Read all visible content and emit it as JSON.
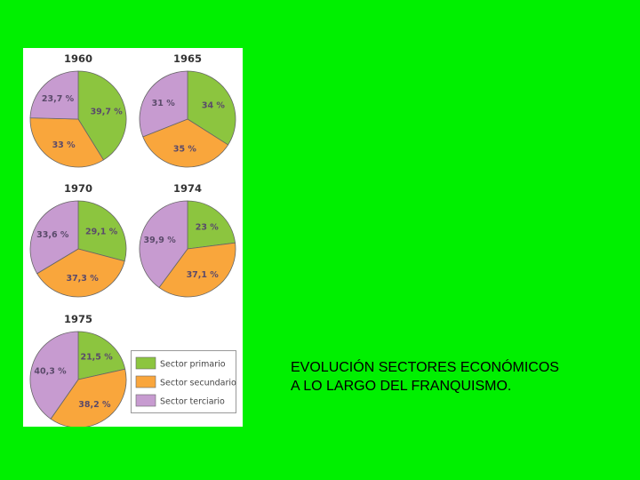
{
  "slide": {
    "background": "#00f000",
    "caption_line1": "EVOLUCIÓN SECTORES ECONÓMICOS",
    "caption_line2": "A LO LARGO DEL FRANQUISMO."
  },
  "colors": {
    "primario": "#8cc53f",
    "secundario": "#f9a63c",
    "terciario": "#c79bd0",
    "stroke": "#666666",
    "label": "#5a4a6a",
    "title": "#333333"
  },
  "chart_data": [
    {
      "type": "pie",
      "title": "1960",
      "series": [
        {
          "name": "Sector primario",
          "value": 39.7,
          "label": "39,7 %"
        },
        {
          "name": "Sector secundario",
          "value": 33,
          "label": "33 %"
        },
        {
          "name": "Sector terciario",
          "value": 23.7,
          "label": "23,7 %"
        }
      ]
    },
    {
      "type": "pie",
      "title": "1965",
      "series": [
        {
          "name": "Sector primario",
          "value": 34,
          "label": "34 %"
        },
        {
          "name": "Sector secundario",
          "value": 35,
          "label": "35 %"
        },
        {
          "name": "Sector terciario",
          "value": 31,
          "label": "31 %"
        }
      ]
    },
    {
      "type": "pie",
      "title": "1970",
      "series": [
        {
          "name": "Sector primario",
          "value": 29.1,
          "label": "29,1 %"
        },
        {
          "name": "Sector secundario",
          "value": 37.3,
          "label": "37,3 %"
        },
        {
          "name": "Sector terciario",
          "value": 33.6,
          "label": "33,6 %"
        }
      ]
    },
    {
      "type": "pie",
      "title": "1974",
      "series": [
        {
          "name": "Sector primario",
          "value": 23,
          "label": "23 %"
        },
        {
          "name": "Sector secundario",
          "value": 37.1,
          "label": "37,1 %"
        },
        {
          "name": "Sector terciario",
          "value": 39.9,
          "label": "39,9 %"
        }
      ]
    },
    {
      "type": "pie",
      "title": "1975",
      "series": [
        {
          "name": "Sector primario",
          "value": 21.5,
          "label": "21,5 %"
        },
        {
          "name": "Sector secundario",
          "value": 38.2,
          "label": "38,2 %"
        },
        {
          "name": "Sector terciario",
          "value": 40.3,
          "label": "40,3 %"
        }
      ]
    }
  ],
  "legend": {
    "items": [
      {
        "label": "Sector primario",
        "color_key": "primario"
      },
      {
        "label": "Sector secundario",
        "color_key": "secundario"
      },
      {
        "label": "Sector terciario",
        "color_key": "terciario"
      }
    ]
  }
}
